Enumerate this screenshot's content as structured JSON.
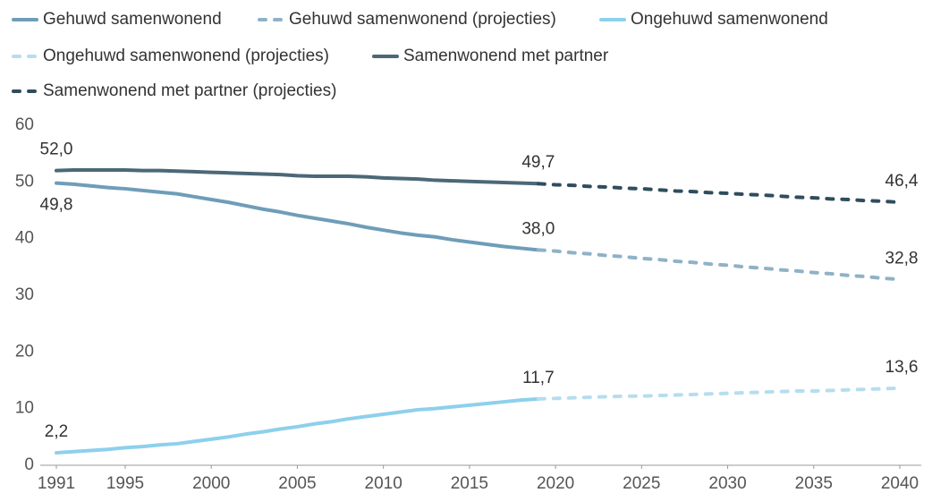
{
  "chart_data": {
    "type": "line",
    "x": [
      1991,
      1992,
      1993,
      1994,
      1995,
      1996,
      1997,
      1998,
      1999,
      2000,
      2001,
      2002,
      2003,
      2004,
      2005,
      2006,
      2007,
      2008,
      2009,
      2010,
      2011,
      2012,
      2013,
      2014,
      2015,
      2016,
      2017,
      2018,
      2019,
      2020,
      2021,
      2022,
      2023,
      2024,
      2025,
      2026,
      2027,
      2028,
      2029,
      2030,
      2031,
      2032,
      2033,
      2034,
      2035,
      2036,
      2037,
      2038,
      2039,
      2040
    ],
    "series": [
      {
        "name": "Gehuwd samenwonend",
        "color": "#6f9db8",
        "dashed": false,
        "values": [
          49.8,
          49.6,
          49.3,
          49.0,
          48.8,
          48.5,
          48.2,
          47.9,
          47.4,
          46.9,
          46.4,
          45.8,
          45.2,
          44.7,
          44.1,
          43.6,
          43.1,
          42.6,
          42.0,
          41.5,
          41.0,
          40.6,
          40.3,
          39.8,
          39.4,
          39.0,
          38.6,
          38.3,
          38.0,
          null,
          null,
          null,
          null,
          null,
          null,
          null,
          null,
          null,
          null,
          null,
          null,
          null,
          null,
          null,
          null,
          null,
          null,
          null,
          null,
          null
        ],
        "value_labels": [
          "49,8",
          null,
          null,
          null,
          null,
          null,
          null,
          null,
          null,
          null,
          null,
          null,
          null,
          null,
          null,
          null,
          null,
          null,
          null,
          null,
          null,
          null,
          null,
          null,
          null,
          null,
          null,
          null,
          "38,0",
          null,
          null,
          null,
          null,
          null,
          null,
          null,
          null,
          null,
          null,
          null,
          null,
          null,
          null,
          null,
          null,
          null,
          null,
          null,
          null,
          null
        ]
      },
      {
        "name": "Gehuwd samenwonend (projecties)",
        "color": "#8fb2c7",
        "dashed": true,
        "values": [
          null,
          null,
          null,
          null,
          null,
          null,
          null,
          null,
          null,
          null,
          null,
          null,
          null,
          null,
          null,
          null,
          null,
          null,
          null,
          null,
          null,
          null,
          null,
          null,
          null,
          null,
          null,
          null,
          38.0,
          37.8,
          37.5,
          37.3,
          37.0,
          36.8,
          36.5,
          36.3,
          36.0,
          35.8,
          35.5,
          35.3,
          35.0,
          34.8,
          34.5,
          34.3,
          34.0,
          33.8,
          33.5,
          33.3,
          33.0,
          32.8
        ],
        "value_labels": [
          null,
          null,
          null,
          null,
          null,
          null,
          null,
          null,
          null,
          null,
          null,
          null,
          null,
          null,
          null,
          null,
          null,
          null,
          null,
          null,
          null,
          null,
          null,
          null,
          null,
          null,
          null,
          null,
          null,
          null,
          null,
          null,
          null,
          null,
          null,
          null,
          null,
          null,
          null,
          null,
          null,
          null,
          null,
          null,
          null,
          null,
          null,
          null,
          null,
          "32,8"
        ]
      },
      {
        "name": "Ongehuwd samenwonend",
        "color": "#8dd0ec",
        "dashed": false,
        "values": [
          2.2,
          2.4,
          2.6,
          2.8,
          3.1,
          3.3,
          3.6,
          3.8,
          4.2,
          4.6,
          5.0,
          5.5,
          5.9,
          6.4,
          6.8,
          7.3,
          7.7,
          8.2,
          8.6,
          9.0,
          9.4,
          9.8,
          10.0,
          10.3,
          10.6,
          10.9,
          11.2,
          11.5,
          11.7,
          null,
          null,
          null,
          null,
          null,
          null,
          null,
          null,
          null,
          null,
          null,
          null,
          null,
          null,
          null,
          null,
          null,
          null,
          null,
          null,
          null
        ],
        "value_labels": [
          "2,2",
          null,
          null,
          null,
          null,
          null,
          null,
          null,
          null,
          null,
          null,
          null,
          null,
          null,
          null,
          null,
          null,
          null,
          null,
          null,
          null,
          null,
          null,
          null,
          null,
          null,
          null,
          null,
          "11,7",
          null,
          null,
          null,
          null,
          null,
          null,
          null,
          null,
          null,
          null,
          null,
          null,
          null,
          null,
          null,
          null,
          null,
          null,
          null,
          null,
          null
        ]
      },
      {
        "name": "Ongehuwd samenwonend (projecties)",
        "color": "#b6ddef",
        "dashed": true,
        "values": [
          null,
          null,
          null,
          null,
          null,
          null,
          null,
          null,
          null,
          null,
          null,
          null,
          null,
          null,
          null,
          null,
          null,
          null,
          null,
          null,
          null,
          null,
          null,
          null,
          null,
          null,
          null,
          null,
          11.7,
          11.8,
          11.9,
          12.0,
          12.1,
          12.2,
          12.2,
          12.3,
          12.4,
          12.5,
          12.6,
          12.7,
          12.8,
          12.9,
          13.0,
          13.1,
          13.1,
          13.2,
          13.3,
          13.4,
          13.5,
          13.6
        ],
        "value_labels": [
          null,
          null,
          null,
          null,
          null,
          null,
          null,
          null,
          null,
          null,
          null,
          null,
          null,
          null,
          null,
          null,
          null,
          null,
          null,
          null,
          null,
          null,
          null,
          null,
          null,
          null,
          null,
          null,
          null,
          null,
          null,
          null,
          null,
          null,
          null,
          null,
          null,
          null,
          null,
          null,
          null,
          null,
          null,
          null,
          null,
          null,
          null,
          null,
          null,
          "13,6"
        ]
      },
      {
        "name": "Samenwonend met partner",
        "color": "#4b6877",
        "dashed": false,
        "values": [
          52.0,
          52.1,
          52.1,
          52.1,
          52.1,
          52.0,
          52.0,
          51.9,
          51.8,
          51.7,
          51.6,
          51.5,
          51.4,
          51.3,
          51.1,
          51.0,
          51.0,
          51.0,
          50.9,
          50.7,
          50.6,
          50.5,
          50.3,
          50.2,
          50.1,
          50.0,
          49.9,
          49.8,
          49.7,
          null,
          null,
          null,
          null,
          null,
          null,
          null,
          null,
          null,
          null,
          null,
          null,
          null,
          null,
          null,
          null,
          null,
          null,
          null,
          null,
          null
        ],
        "value_labels": [
          "52,0",
          null,
          null,
          null,
          null,
          null,
          null,
          null,
          null,
          null,
          null,
          null,
          null,
          null,
          null,
          null,
          null,
          null,
          null,
          null,
          null,
          null,
          null,
          null,
          null,
          null,
          null,
          null,
          "49,7",
          null,
          null,
          null,
          null,
          null,
          null,
          null,
          null,
          null,
          null,
          null,
          null,
          null,
          null,
          null,
          null,
          null,
          null,
          null,
          null,
          null
        ]
      },
      {
        "name": "Samenwonend met partner (projecties)",
        "color": "#2f4d5e",
        "dashed": true,
        "values": [
          null,
          null,
          null,
          null,
          null,
          null,
          null,
          null,
          null,
          null,
          null,
          null,
          null,
          null,
          null,
          null,
          null,
          null,
          null,
          null,
          null,
          null,
          null,
          null,
          null,
          null,
          null,
          null,
          49.7,
          49.5,
          49.4,
          49.2,
          49.1,
          48.9,
          48.8,
          48.6,
          48.4,
          48.3,
          48.1,
          48.0,
          47.8,
          47.7,
          47.5,
          47.3,
          47.2,
          47.0,
          46.9,
          46.7,
          46.6,
          46.4
        ],
        "value_labels": [
          null,
          null,
          null,
          null,
          null,
          null,
          null,
          null,
          null,
          null,
          null,
          null,
          null,
          null,
          null,
          null,
          null,
          null,
          null,
          null,
          null,
          null,
          null,
          null,
          null,
          null,
          null,
          null,
          null,
          null,
          null,
          null,
          null,
          null,
          null,
          null,
          null,
          null,
          null,
          null,
          null,
          null,
          null,
          null,
          null,
          null,
          null,
          null,
          null,
          "46,4"
        ]
      }
    ],
    "xlim": [
      1991,
      2040
    ],
    "xticks": [
      1991,
      1995,
      2000,
      2005,
      2010,
      2015,
      2020,
      2025,
      2030,
      2035,
      2040
    ],
    "ylim": [
      0,
      60
    ],
    "yticks": [
      0,
      10,
      20,
      30,
      40,
      50,
      60
    ],
    "grid": false
  }
}
